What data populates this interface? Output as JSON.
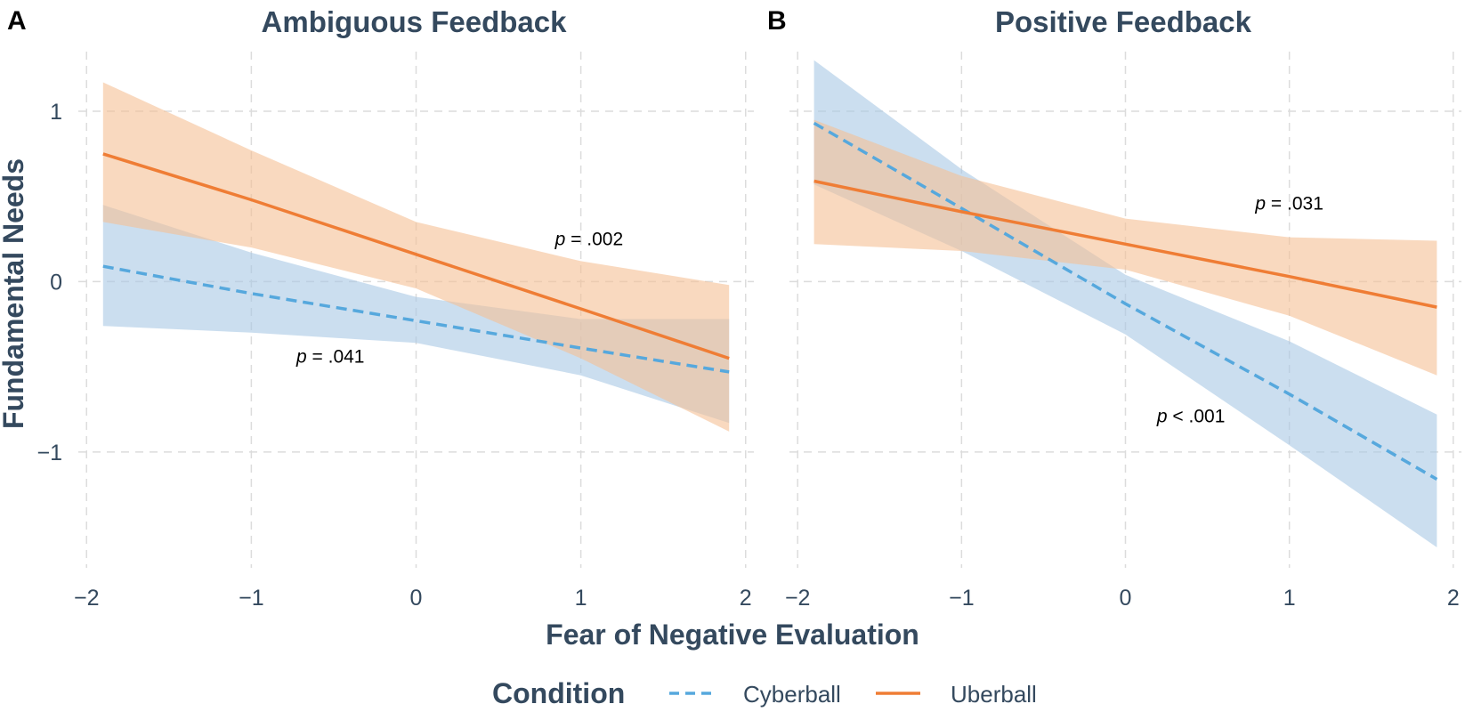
{
  "chart_data": {
    "type": "line",
    "xlabel": "Fear of Negative Evaluation",
    "ylabel": "Fundamental Needs",
    "xlim": [
      -2.05,
      2.05
    ],
    "ylim": [
      -1.68,
      1.35
    ],
    "xticks": [
      -2,
      -1,
      0,
      1,
      2
    ],
    "yticks": [
      -1,
      0,
      1
    ],
    "xtick_labels": [
      "−2",
      "−1",
      "0",
      "1",
      "2"
    ],
    "ytick_labels": [
      "−1",
      "0",
      "1"
    ],
    "grid": true,
    "legend": {
      "title": "Condition",
      "position": "bottom",
      "entries": [
        {
          "name": "Cyberball",
          "color": "#56a8dd",
          "linestyle": "dashed"
        },
        {
          "name": "Uberball",
          "color": "#ef7d35",
          "linestyle": "solid"
        }
      ]
    },
    "panels": [
      {
        "letter": "A",
        "title": "Ambiguous Feedback",
        "series": [
          {
            "name": "Cyberball",
            "color": "#56a8dd",
            "band_color": "#a9c8e4",
            "linestyle": "dashed",
            "x": [
              -1.9,
              -1.0,
              0.0,
              1.0,
              1.9
            ],
            "y": [
              0.09,
              -0.07,
              -0.23,
              -0.39,
              -0.53
            ],
            "lower": [
              -0.26,
              -0.3,
              -0.36,
              -0.55,
              -0.83
            ],
            "upper": [
              0.45,
              0.17,
              -0.09,
              -0.22,
              -0.22
            ]
          },
          {
            "name": "Uberball",
            "color": "#ef7d35",
            "band_color": "#f5bf95",
            "linestyle": "solid",
            "x": [
              -1.9,
              -1.0,
              0.0,
              1.0,
              1.9
            ],
            "y": [
              0.75,
              0.48,
              0.16,
              -0.16,
              -0.45
            ],
            "lower": [
              0.35,
              0.2,
              -0.04,
              -0.45,
              -0.88
            ],
            "upper": [
              1.17,
              0.77,
              0.35,
              0.12,
              -0.02
            ]
          }
        ],
        "annotations": [
          {
            "p": "p",
            "text": " = .002",
            "x": 1.05,
            "y": 0.25
          },
          {
            "p": "p",
            "text": " = .041",
            "x": -0.52,
            "y": -0.44
          }
        ]
      },
      {
        "letter": "B",
        "title": "Positive Feedback",
        "series": [
          {
            "name": "Cyberball",
            "color": "#56a8dd",
            "band_color": "#a9c8e4",
            "linestyle": "dashed",
            "x": [
              -1.9,
              -1.0,
              0.0,
              1.0,
              1.9
            ],
            "y": [
              0.93,
              0.43,
              -0.13,
              -0.66,
              -1.16
            ],
            "lower": [
              0.57,
              0.18,
              -0.31,
              -0.96,
              -1.56
            ],
            "upper": [
              1.3,
              0.66,
              0.04,
              -0.35,
              -0.78
            ]
          },
          {
            "name": "Uberball",
            "color": "#ef7d35",
            "band_color": "#f5bf95",
            "linestyle": "solid",
            "x": [
              -1.9,
              -1.0,
              0.0,
              1.0,
              1.9
            ],
            "y": [
              0.59,
              0.41,
              0.22,
              0.03,
              -0.15
            ],
            "lower": [
              0.22,
              0.18,
              0.07,
              -0.2,
              -0.55
            ],
            "upper": [
              0.95,
              0.62,
              0.37,
              0.26,
              0.24
            ]
          }
        ],
        "annotations": [
          {
            "p": "p",
            "text": " = .031",
            "x": 1.0,
            "y": 0.46
          },
          {
            "p": "p",
            "text": " < .001",
            "x": 0.4,
            "y": -0.79
          }
        ]
      }
    ]
  }
}
